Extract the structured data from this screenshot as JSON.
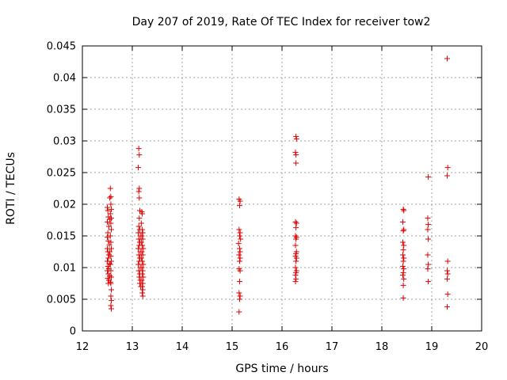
{
  "chart_data": {
    "type": "scatter",
    "title": "Day 207 of 2019, Rate Of TEC Index for receiver tow2",
    "xlabel": "GPS time / hours",
    "ylabel": "ROTI / TECUs",
    "xlim": [
      12,
      20
    ],
    "ylim": [
      0,
      0.045
    ],
    "xticks": [
      12,
      13,
      14,
      15,
      16,
      17,
      18,
      19,
      20
    ],
    "xtick_labels": [
      "12",
      "13",
      "14",
      "15",
      "16",
      "17",
      "18",
      "19",
      "20"
    ],
    "yticks": [
      0,
      0.005,
      0.01,
      0.015,
      0.02,
      0.025,
      0.03,
      0.035,
      0.04,
      0.045
    ],
    "ytick_labels": [
      "0",
      "0.005",
      "0.01",
      "0.015",
      "0.02",
      "0.025",
      "0.03",
      "0.035",
      "0.04",
      "0.045"
    ],
    "grid": true,
    "marker": "+",
    "color": "#e00000",
    "series": [
      {
        "name": "ROTI",
        "points": [
          [
            12.5,
            0.0195
          ],
          [
            12.51,
            0.019
          ],
          [
            12.52,
            0.018
          ],
          [
            12.5,
            0.0172
          ],
          [
            12.53,
            0.0165
          ],
          [
            12.51,
            0.0155
          ],
          [
            12.5,
            0.0148
          ],
          [
            12.52,
            0.0142
          ],
          [
            12.54,
            0.0136
          ],
          [
            12.5,
            0.013
          ],
          [
            12.51,
            0.0125
          ],
          [
            12.53,
            0.012
          ],
          [
            12.52,
            0.0115
          ],
          [
            12.5,
            0.011
          ],
          [
            12.54,
            0.0106
          ],
          [
            12.51,
            0.0102
          ],
          [
            12.53,
            0.0098
          ],
          [
            12.5,
            0.0095
          ],
          [
            12.52,
            0.009
          ],
          [
            12.55,
            0.0087
          ],
          [
            12.51,
            0.0083
          ],
          [
            12.53,
            0.008
          ],
          [
            12.56,
            0.0077
          ],
          [
            12.52,
            0.0075
          ],
          [
            12.56,
            0.0225
          ],
          [
            12.57,
            0.0212
          ],
          [
            12.55,
            0.021
          ],
          [
            12.57,
            0.02
          ],
          [
            12.58,
            0.0192
          ],
          [
            12.56,
            0.0185
          ],
          [
            12.58,
            0.0178
          ],
          [
            12.55,
            0.0176
          ],
          [
            12.57,
            0.017
          ],
          [
            12.58,
            0.016
          ],
          [
            12.56,
            0.015
          ],
          [
            12.57,
            0.014
          ],
          [
            12.58,
            0.013
          ],
          [
            12.55,
            0.0125
          ],
          [
            12.57,
            0.0118
          ],
          [
            12.58,
            0.011
          ],
          [
            12.56,
            0.0105
          ],
          [
            12.57,
            0.0095
          ],
          [
            12.58,
            0.0085
          ],
          [
            12.57,
            0.0075
          ],
          [
            12.58,
            0.0065
          ],
          [
            12.57,
            0.0055
          ],
          [
            12.58,
            0.0048
          ],
          [
            12.57,
            0.004
          ],
          [
            12.58,
            0.0035
          ],
          [
            13.13,
            0.0288
          ],
          [
            13.14,
            0.0278
          ],
          [
            13.12,
            0.0258
          ],
          [
            13.14,
            0.0225
          ],
          [
            13.13,
            0.022
          ],
          [
            13.14,
            0.021
          ],
          [
            13.15,
            0.019
          ],
          [
            13.14,
            0.0178
          ],
          [
            13.13,
            0.0165
          ],
          [
            13.15,
            0.016
          ],
          [
            13.12,
            0.0155
          ],
          [
            13.16,
            0.015
          ],
          [
            13.13,
            0.0145
          ],
          [
            13.15,
            0.014
          ],
          [
            13.14,
            0.0135
          ],
          [
            13.12,
            0.013
          ],
          [
            13.16,
            0.0125
          ],
          [
            13.13,
            0.012
          ],
          [
            13.15,
            0.0115
          ],
          [
            13.14,
            0.011
          ],
          [
            13.12,
            0.0105
          ],
          [
            13.16,
            0.01
          ],
          [
            13.13,
            0.0095
          ],
          [
            13.15,
            0.009
          ],
          [
            13.14,
            0.0085
          ],
          [
            13.16,
            0.008
          ],
          [
            13.15,
            0.0075
          ],
          [
            13.17,
            0.007
          ],
          [
            13.19,
            0.0188
          ],
          [
            13.2,
            0.0185
          ],
          [
            13.18,
            0.017
          ],
          [
            13.2,
            0.016
          ],
          [
            13.21,
            0.0155
          ],
          [
            13.19,
            0.015
          ],
          [
            13.21,
            0.0145
          ],
          [
            13.18,
            0.014
          ],
          [
            13.2,
            0.0135
          ],
          [
            13.22,
            0.013
          ],
          [
            13.19,
            0.0125
          ],
          [
            13.21,
            0.012
          ],
          [
            13.18,
            0.0115
          ],
          [
            13.2,
            0.011
          ],
          [
            13.22,
            0.0105
          ],
          [
            13.19,
            0.01
          ],
          [
            13.21,
            0.0095
          ],
          [
            13.2,
            0.009
          ],
          [
            13.22,
            0.0085
          ],
          [
            13.19,
            0.008
          ],
          [
            13.21,
            0.0075
          ],
          [
            13.2,
            0.007
          ],
          [
            13.21,
            0.0065
          ],
          [
            13.2,
            0.006
          ],
          [
            13.21,
            0.0055
          ],
          [
            15.14,
            0.0208
          ],
          [
            15.16,
            0.0205
          ],
          [
            15.15,
            0.0198
          ],
          [
            15.14,
            0.016
          ],
          [
            15.16,
            0.0155
          ],
          [
            15.15,
            0.015
          ],
          [
            15.17,
            0.0145
          ],
          [
            15.13,
            0.0138
          ],
          [
            15.15,
            0.013
          ],
          [
            15.16,
            0.0125
          ],
          [
            15.14,
            0.012
          ],
          [
            15.16,
            0.0115
          ],
          [
            15.15,
            0.011
          ],
          [
            15.14,
            0.0098
          ],
          [
            15.16,
            0.0095
          ],
          [
            15.15,
            0.0078
          ],
          [
            15.14,
            0.006
          ],
          [
            15.16,
            0.0055
          ],
          [
            15.15,
            0.005
          ],
          [
            15.14,
            0.003
          ],
          [
            16.28,
            0.0307
          ],
          [
            16.29,
            0.0303
          ],
          [
            16.27,
            0.0282
          ],
          [
            16.28,
            0.0278
          ],
          [
            16.28,
            0.0265
          ],
          [
            16.27,
            0.0172
          ],
          [
            16.29,
            0.017
          ],
          [
            16.28,
            0.0163
          ],
          [
            16.27,
            0.015
          ],
          [
            16.29,
            0.0148
          ],
          [
            16.28,
            0.0145
          ],
          [
            16.27,
            0.0135
          ],
          [
            16.29,
            0.0125
          ],
          [
            16.28,
            0.0122
          ],
          [
            16.27,
            0.0118
          ],
          [
            16.29,
            0.0115
          ],
          [
            16.28,
            0.011
          ],
          [
            16.27,
            0.01
          ],
          [
            16.29,
            0.0095
          ],
          [
            16.28,
            0.0092
          ],
          [
            16.27,
            0.0088
          ],
          [
            16.28,
            0.0082
          ],
          [
            16.27,
            0.0078
          ],
          [
            18.43,
            0.0192
          ],
          [
            18.44,
            0.019
          ],
          [
            18.42,
            0.0172
          ],
          [
            18.44,
            0.016
          ],
          [
            18.43,
            0.0158
          ],
          [
            18.42,
            0.014
          ],
          [
            18.44,
            0.0135
          ],
          [
            18.43,
            0.0128
          ],
          [
            18.42,
            0.012
          ],
          [
            18.44,
            0.0115
          ],
          [
            18.43,
            0.011
          ],
          [
            18.42,
            0.0102
          ],
          [
            18.44,
            0.0098
          ],
          [
            18.43,
            0.0092
          ],
          [
            18.42,
            0.0088
          ],
          [
            18.44,
            0.0082
          ],
          [
            18.43,
            0.0072
          ],
          [
            18.43,
            0.0052
          ],
          [
            18.93,
            0.0243
          ],
          [
            18.92,
            0.0178
          ],
          [
            18.93,
            0.0168
          ],
          [
            18.92,
            0.016
          ],
          [
            18.93,
            0.0145
          ],
          [
            18.92,
            0.012
          ],
          [
            18.93,
            0.0105
          ],
          [
            18.92,
            0.0098
          ],
          [
            18.93,
            0.0078
          ],
          [
            19.31,
            0.043
          ],
          [
            19.32,
            0.0258
          ],
          [
            19.31,
            0.0245
          ],
          [
            19.32,
            0.011
          ],
          [
            19.31,
            0.0095
          ],
          [
            19.32,
            0.009
          ],
          [
            19.31,
            0.0082
          ],
          [
            19.32,
            0.0058
          ],
          [
            19.31,
            0.0038
          ]
        ]
      }
    ]
  }
}
